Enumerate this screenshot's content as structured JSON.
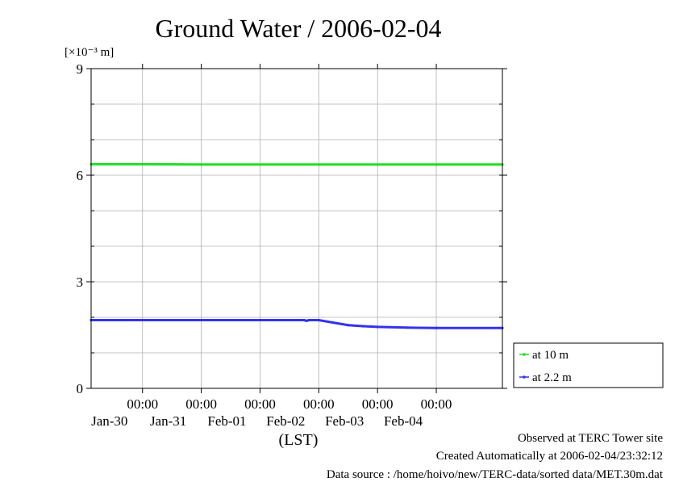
{
  "chart_data": {
    "type": "line",
    "title": "Ground Water / 2006-02-04",
    "ylabel": "[×10⁻³ m]",
    "xlabel": "(LST)",
    "ylim": [
      0,
      9
    ],
    "yticks": [
      0,
      3,
      6,
      9
    ],
    "xlim": [
      "2006-01-29T03:00",
      "2006-02-05T03:00"
    ],
    "xticks": [
      {
        "time": "2006-01-30T00:00",
        "label_time": "00:00",
        "label_date": "Jan-30"
      },
      {
        "time": "2006-01-31T00:00",
        "label_time": "00:00",
        "label_date": "Jan-31"
      },
      {
        "time": "2006-02-01T00:00",
        "label_time": "00:00",
        "label_date": "Feb-01"
      },
      {
        "time": "2006-02-02T00:00",
        "label_time": "00:00",
        "label_date": "Feb-02"
      },
      {
        "time": "2006-02-03T00:00",
        "label_time": "00:00",
        "label_date": "Feb-03"
      },
      {
        "time": "2006-02-04T00:00",
        "label_time": "00:00",
        "label_date": "Feb-04"
      }
    ],
    "grid": true,
    "legend_position": "bottom-right outside",
    "series": [
      {
        "name": "at 10 m",
        "color": "#22dd22",
        "points": [
          [
            "2006-01-29T03:00",
            6.31
          ],
          [
            "2006-01-30T00:00",
            6.31
          ],
          [
            "2006-01-31T00:00",
            6.3
          ],
          [
            "2006-02-01T00:00",
            6.3
          ],
          [
            "2006-02-02T00:00",
            6.3
          ],
          [
            "2006-02-03T00:00",
            6.3
          ],
          [
            "2006-02-04T00:00",
            6.3
          ],
          [
            "2006-02-05T03:00",
            6.3
          ]
        ]
      },
      {
        "name": "at 2.2 m",
        "color": "#3333ee",
        "points": [
          [
            "2006-01-29T03:00",
            1.92
          ],
          [
            "2006-01-30T00:00",
            1.92
          ],
          [
            "2006-01-31T00:00",
            1.92
          ],
          [
            "2006-02-01T00:00",
            1.92
          ],
          [
            "2006-02-01T18:00",
            1.92
          ],
          [
            "2006-02-01T19:00",
            1.9
          ],
          [
            "2006-02-01T20:00",
            1.92
          ],
          [
            "2006-02-02T00:00",
            1.92
          ],
          [
            "2006-02-02T06:00",
            1.85
          ],
          [
            "2006-02-02T12:00",
            1.78
          ],
          [
            "2006-02-02T18:00",
            1.75
          ],
          [
            "2006-02-03T00:00",
            1.73
          ],
          [
            "2006-02-03T12:00",
            1.71
          ],
          [
            "2006-02-04T00:00",
            1.7
          ],
          [
            "2006-02-05T03:00",
            1.7
          ]
        ]
      }
    ]
  },
  "footer": {
    "observed": "Observed at TERC Tower site",
    "created": "Created Automatically at 2006-02-04/23:32:12",
    "source": "Data source : /home/hoivo/new/TERC-data/sorted  data/MET.30m.dat"
  }
}
